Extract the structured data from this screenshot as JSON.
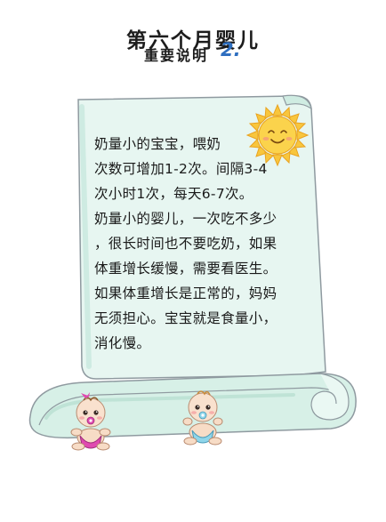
{
  "header": {
    "title": "第六个月婴儿",
    "subtitle": "重要说明",
    "number": "2."
  },
  "note": {
    "lines": [
      "奶量小的宝宝，喂奶",
      "次数可增加1-2次。间隔3-4",
      "次小时1次，每天6-7次。",
      "奶量小的婴儿，一次吃不多少",
      "，很长时间也不要吃奶，如果",
      "体重增长缓慢，需要看医生。",
      "如果体重增长是正常的，妈妈",
      "无须担心。宝宝就是食量小，",
      "消化慢。"
    ]
  },
  "illustrations": {
    "sun": "smiling-sun-icon",
    "baby_left": "baby-girl-with-pacifier",
    "baby_right": "baby-boy-with-pacifier"
  },
  "colors": {
    "scroll_fill": "#e6f5ef",
    "scroll_outline": "#8f9aa0",
    "scroll_accent": "#bfe3d6",
    "title_number": "#2f6fc0",
    "sun": "#f7c23a"
  }
}
